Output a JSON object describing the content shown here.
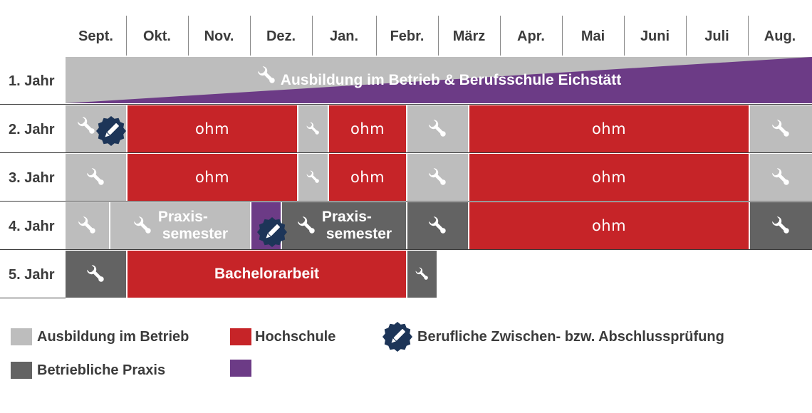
{
  "months": [
    "Sept.",
    "Okt.",
    "Nov.",
    "Dez.",
    "Jan.",
    "Febr.",
    "März",
    "Apr.",
    "Mai",
    "Juni",
    "Juli",
    "Aug."
  ],
  "years": [
    "1. Jahr",
    "2. Jahr",
    "3. Jahr",
    "4. Jahr",
    "5. Jahr"
  ],
  "row1": {
    "banner": "Ausbildung im Betrieb & Berufsschule Eichstätt"
  },
  "ohm_label": "ohm",
  "praxis_line1": "Praxis-",
  "praxis_line2": "semester",
  "bachelor_label": "Bachelorarbeit",
  "legend": {
    "ausbildung": "Ausbildung im Betrieb",
    "hochschule": "Hochschule",
    "pruefung": "Berufliche Zwischen- bzw. Abschlussprüfung",
    "praxis": "Betriebliche Praxis"
  },
  "colors": {
    "ausbildung": "#bdbdbd",
    "praxis": "#636363",
    "hochschule": "#c62428",
    "berufsschule": "#6c3b86",
    "badge": "#1d3558"
  },
  "icons": {
    "wrench": "wrench-icon",
    "badge": "exam-badge-icon"
  }
}
